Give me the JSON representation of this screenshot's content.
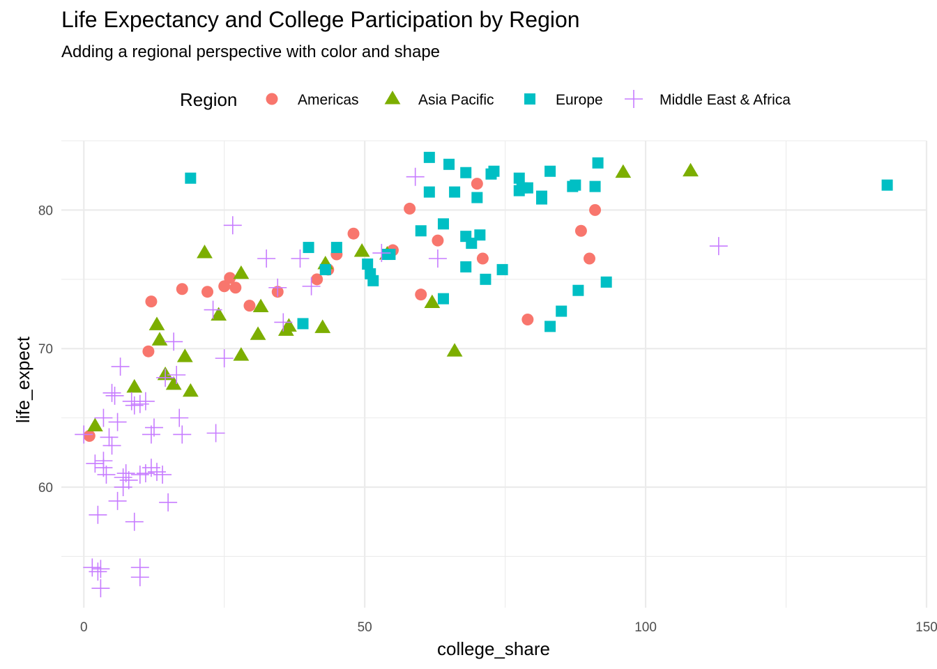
{
  "chart_data": {
    "type": "scatter",
    "title": "Life Expectancy and College Participation by Region",
    "subtitle": "Adding a regional perspective with color and shape",
    "xlabel": "college_share",
    "ylabel": "life_expect",
    "xlim": [
      -4,
      150
    ],
    "ylim": [
      51.3,
      85
    ],
    "x_ticks": [
      0,
      50,
      100,
      150
    ],
    "x_tick_labels": [
      "0",
      "50",
      "100",
      "150"
    ],
    "y_ticks": [
      60,
      70,
      80
    ],
    "y_tick_labels": [
      "60",
      "70",
      "80"
    ],
    "grid": true,
    "legend": {
      "title": "Region",
      "position": "top",
      "entries": [
        "Americas",
        "Asia Pacific",
        "Europe",
        "Middle East & Africa"
      ]
    },
    "series": [
      {
        "name": "Americas",
        "color": "#F8766D",
        "shape": "circle",
        "points": [
          [
            1,
            63.7
          ],
          [
            11.5,
            69.8
          ],
          [
            12,
            73.4
          ],
          [
            17.5,
            74.3
          ],
          [
            22,
            74.1
          ],
          [
            25,
            74.5
          ],
          [
            26,
            75.1
          ],
          [
            27,
            74.4
          ],
          [
            29.5,
            73.1
          ],
          [
            34.5,
            74.1
          ],
          [
            41.5,
            75.0
          ],
          [
            43.5,
            75.7
          ],
          [
            45,
            76.8
          ],
          [
            48,
            78.3
          ],
          [
            55,
            77.1
          ],
          [
            58,
            80.1
          ],
          [
            60,
            73.9
          ],
          [
            63,
            77.8
          ],
          [
            70,
            81.9
          ],
          [
            71,
            76.5
          ],
          [
            79,
            72.1
          ],
          [
            88.5,
            78.5
          ],
          [
            90,
            76.5
          ],
          [
            91,
            80.0
          ]
        ]
      },
      {
        "name": "Asia Pacific",
        "color": "#7CAE00",
        "shape": "triangle",
        "points": [
          [
            2,
            64.4
          ],
          [
            9,
            67.2
          ],
          [
            13,
            71.7
          ],
          [
            13.5,
            70.6
          ],
          [
            14.5,
            68.1
          ],
          [
            16,
            67.4
          ],
          [
            18,
            69.4
          ],
          [
            19,
            66.9
          ],
          [
            21.5,
            76.9
          ],
          [
            24,
            72.4
          ],
          [
            28,
            75.4
          ],
          [
            28,
            69.5
          ],
          [
            31,
            71.0
          ],
          [
            31.5,
            73.0
          ],
          [
            36,
            71.3
          ],
          [
            36.5,
            71.6
          ],
          [
            42.5,
            71.5
          ],
          [
            43,
            76.1
          ],
          [
            49.5,
            77.0
          ],
          [
            54,
            76.8
          ],
          [
            62,
            73.3
          ],
          [
            66,
            69.8
          ],
          [
            96,
            82.7
          ],
          [
            108,
            82.8
          ]
        ]
      },
      {
        "name": "Europe",
        "color": "#00BFC4",
        "shape": "square",
        "points": [
          [
            19,
            82.3
          ],
          [
            39,
            71.8
          ],
          [
            40,
            77.3
          ],
          [
            43,
            75.7
          ],
          [
            45,
            77.3
          ],
          [
            50.5,
            76.1
          ],
          [
            51,
            75.4
          ],
          [
            51.5,
            74.9
          ],
          [
            54,
            76.8
          ],
          [
            54.5,
            76.8
          ],
          [
            60,
            78.5
          ],
          [
            61.5,
            83.8
          ],
          [
            61.5,
            81.3
          ],
          [
            64,
            79.0
          ],
          [
            64,
            73.6
          ],
          [
            65,
            83.3
          ],
          [
            66,
            81.3
          ],
          [
            68,
            82.7
          ],
          [
            68,
            78.1
          ],
          [
            68,
            75.9
          ],
          [
            69,
            77.6
          ],
          [
            70,
            80.9
          ],
          [
            70.5,
            78.2
          ],
          [
            71.5,
            75.0
          ],
          [
            72.5,
            82.6
          ],
          [
            73,
            82.8
          ],
          [
            74.5,
            75.7
          ],
          [
            77.5,
            82.3
          ],
          [
            77.5,
            81.4
          ],
          [
            78,
            81.6
          ],
          [
            79,
            81.6
          ],
          [
            81.5,
            81.0
          ],
          [
            81.5,
            80.8
          ],
          [
            83,
            71.6
          ],
          [
            83,
            82.8
          ],
          [
            85,
            72.7
          ],
          [
            87,
            81.7
          ],
          [
            87.5,
            81.8
          ],
          [
            88,
            74.2
          ],
          [
            91,
            81.7
          ],
          [
            91.5,
            83.4
          ],
          [
            93,
            74.8
          ],
          [
            143,
            81.8
          ]
        ]
      },
      {
        "name": "Middle East & Africa",
        "color": "#C77CFF",
        "shape": "plus",
        "points": [
          [
            0,
            63.8
          ],
          [
            1.5,
            54.2
          ],
          [
            2,
            61.7
          ],
          [
            2.5,
            58.0
          ],
          [
            2.5,
            53.9
          ],
          [
            3,
            54.1
          ],
          [
            3,
            52.7
          ],
          [
            3.5,
            61.9
          ],
          [
            3.5,
            61.4
          ],
          [
            3.5,
            65.0
          ],
          [
            4,
            60.9
          ],
          [
            4.5,
            63.6
          ],
          [
            5,
            63.0
          ],
          [
            5,
            66.8
          ],
          [
            5.5,
            66.6
          ],
          [
            6,
            59.0
          ],
          [
            6,
            64.7
          ],
          [
            6.5,
            68.7
          ],
          [
            7,
            60.7
          ],
          [
            7,
            60.0
          ],
          [
            7.5,
            61.0
          ],
          [
            8,
            60.5
          ],
          [
            8.5,
            66.2
          ],
          [
            9,
            65.9
          ],
          [
            9,
            57.5
          ],
          [
            10,
            54.2
          ],
          [
            10,
            53.5
          ],
          [
            10,
            60.9
          ],
          [
            10,
            66.0
          ],
          [
            11,
            61.0
          ],
          [
            11,
            66.2
          ],
          [
            12,
            61.4
          ],
          [
            12,
            63.8
          ],
          [
            12.5,
            64.3
          ],
          [
            13,
            61.1
          ],
          [
            14,
            60.9
          ],
          [
            14.5,
            67.9
          ],
          [
            15,
            58.9
          ],
          [
            16,
            70.5
          ],
          [
            16.5,
            68.1
          ],
          [
            17,
            65.0
          ],
          [
            17.5,
            63.8
          ],
          [
            23,
            72.8
          ],
          [
            23.5,
            63.9
          ],
          [
            25,
            69.3
          ],
          [
            26.5,
            78.9
          ],
          [
            32.5,
            76.5
          ],
          [
            34.5,
            74.4
          ],
          [
            35.5,
            71.9
          ],
          [
            38.5,
            76.5
          ],
          [
            40.5,
            74.5
          ],
          [
            53,
            76.9
          ],
          [
            59,
            82.4
          ],
          [
            63,
            76.5
          ],
          [
            113,
            77.4
          ]
        ]
      }
    ]
  }
}
